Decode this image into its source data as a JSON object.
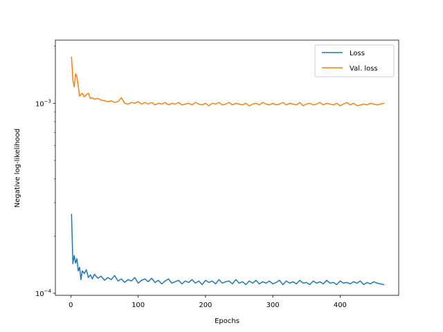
{
  "chart_data": {
    "type": "line",
    "title": "",
    "xlabel": "Epochs",
    "ylabel": "Negative log-likelihood",
    "xlim": [
      -23,
      487
    ],
    "ylim": [
      9.75e-05,
      0.00215
    ],
    "yscale": "log",
    "x_ticks": [
      0,
      100,
      200,
      300,
      400
    ],
    "y_ticks": [
      {
        "value": 0.0001,
        "base": "10",
        "exp": "−4"
      },
      {
        "value": 0.001,
        "base": "10",
        "exp": "−3"
      }
    ],
    "grid": false,
    "legend_position": "top-right",
    "series": [
      {
        "name": "Loss",
        "color": "#1f77b4",
        "x": [
          1,
          3,
          5,
          7,
          9,
          11,
          13,
          15,
          17,
          20,
          23,
          26,
          29,
          32,
          35,
          40,
          45,
          50,
          55,
          60,
          65,
          70,
          75,
          80,
          85,
          90,
          95,
          100,
          105,
          110,
          115,
          120,
          125,
          130,
          135,
          140,
          145,
          150,
          155,
          160,
          165,
          170,
          175,
          180,
          185,
          190,
          195,
          200,
          205,
          210,
          215,
          220,
          225,
          230,
          235,
          240,
          245,
          250,
          255,
          260,
          265,
          270,
          275,
          280,
          285,
          290,
          295,
          300,
          305,
          310,
          315,
          320,
          325,
          330,
          335,
          340,
          345,
          350,
          355,
          360,
          365,
          370,
          375,
          380,
          385,
          390,
          395,
          400,
          405,
          410,
          415,
          420,
          425,
          430,
          435,
          440,
          445,
          450,
          455,
          460,
          465
        ],
        "y": [
          0.00026,
          0.000143,
          0.000158,
          0.000144,
          0.000152,
          0.000131,
          0.000137,
          0.000118,
          0.000131,
          0.000127,
          0.000133,
          0.000121,
          0.000125,
          0.000119,
          0.000126,
          0.00012,
          0.000123,
          0.000117,
          0.000121,
          0.000118,
          0.000124,
          0.000116,
          0.000119,
          0.000114,
          0.000118,
          0.000116,
          0.000121,
          0.000113,
          0.000117,
          0.000119,
          0.000115,
          0.00012,
          0.000114,
          0.000117,
          0.000112,
          0.000116,
          0.000119,
          0.000113,
          0.000115,
          0.000117,
          0.000112,
          0.000116,
          0.000114,
          0.000118,
          0.000113,
          0.000116,
          0.000111,
          0.000117,
          0.000114,
          0.000116,
          0.000112,
          0.000118,
          0.000113,
          0.000115,
          0.000116,
          0.000112,
          0.000118,
          0.000113,
          0.000115,
          0.000111,
          0.000116,
          0.000113,
          0.000117,
          0.000112,
          0.000115,
          0.000113,
          0.000116,
          0.000112,
          0.000114,
          0.000117,
          0.000111,
          0.000116,
          0.000113,
          0.000115,
          0.000112,
          0.000117,
          0.000113,
          0.000114,
          0.000111,
          0.000116,
          0.000113,
          0.000115,
          0.000112,
          0.000117,
          0.000113,
          0.000114,
          0.000111,
          0.000116,
          0.000113,
          0.000114,
          0.000112,
          0.000115,
          0.000113,
          0.000116,
          0.000111,
          0.000114,
          0.000112,
          0.000115,
          0.000113,
          0.000112,
          0.000111
        ]
      },
      {
        "name": "Val. loss",
        "color": "#ff7f0e",
        "x": [
          1,
          3,
          5,
          7,
          9,
          11,
          13,
          15,
          17,
          20,
          23,
          26,
          29,
          32,
          35,
          40,
          45,
          50,
          55,
          60,
          65,
          70,
          75,
          80,
          85,
          90,
          95,
          100,
          105,
          110,
          115,
          120,
          125,
          130,
          135,
          140,
          145,
          150,
          155,
          160,
          165,
          170,
          175,
          180,
          185,
          190,
          195,
          200,
          205,
          210,
          215,
          220,
          225,
          230,
          235,
          240,
          245,
          250,
          255,
          260,
          265,
          270,
          275,
          280,
          285,
          290,
          295,
          300,
          305,
          310,
          315,
          320,
          325,
          330,
          335,
          340,
          345,
          350,
          355,
          360,
          365,
          370,
          375,
          380,
          385,
          390,
          395,
          400,
          405,
          410,
          415,
          420,
          425,
          430,
          435,
          440,
          445,
          450,
          455,
          460,
          465
        ],
        "y": [
          0.00175,
          0.00132,
          0.00122,
          0.00143,
          0.00138,
          0.00123,
          0.00109,
          0.00111,
          0.00113,
          0.00108,
          0.00111,
          0.00113,
          0.00106,
          0.00107,
          0.00105,
          0.00106,
          0.00104,
          0.00103,
          0.00102,
          0.00103,
          0.00101,
          0.00102,
          0.00107,
          0.001,
          0.00099,
          0.00101,
          0.001,
          0.00102,
          0.00099,
          0.00101,
          0.00099,
          0.00101,
          0.00098,
          0.001,
          0.00099,
          0.00101,
          0.00098,
          0.001,
          0.00099,
          0.00101,
          0.00098,
          0.00099,
          0.001,
          0.00098,
          0.00101,
          0.00099,
          0.00098,
          0.001,
          0.00097,
          0.001,
          0.00099,
          0.00101,
          0.00098,
          0.00099,
          0.00101,
          0.00098,
          0.001,
          0.00099,
          0.00098,
          0.001,
          0.00097,
          0.00099,
          0.001,
          0.00098,
          0.00101,
          0.00099,
          0.00098,
          0.001,
          0.00098,
          0.00099,
          0.00101,
          0.00098,
          0.001,
          0.00099,
          0.00098,
          0.00101,
          0.00097,
          0.00099,
          0.001,
          0.00098,
          0.00099,
          0.00101,
          0.00098,
          0.001,
          0.00099,
          0.00098,
          0.001,
          0.00097,
          0.00099,
          0.00101,
          0.00098,
          0.001,
          0.00097,
          0.00098,
          0.00099,
          0.00098,
          0.001,
          0.00099,
          0.00098,
          0.00099,
          0.001
        ]
      }
    ]
  }
}
